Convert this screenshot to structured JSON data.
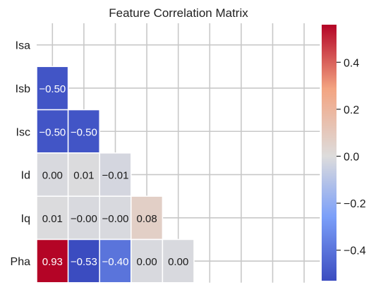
{
  "chart_data": {
    "type": "heatmap",
    "title": "Feature Correlation Matrix",
    "labels": [
      "Isa",
      "Isb",
      "Isc",
      "Id",
      "Iq",
      "Pha"
    ],
    "lower_triangle": [
      [],
      [
        -0.5
      ],
      [
        -0.5,
        -0.5
      ],
      [
        0.0,
        0.01,
        -0.01
      ],
      [
        0.01,
        -0.0,
        -0.0,
        0.08
      ],
      [
        0.93,
        -0.53,
        -0.4,
        0.0,
        0.0
      ]
    ],
    "display_text": [
      [],
      [
        "−0.50"
      ],
      [
        "−0.50",
        "−0.50"
      ],
      [
        "0.00",
        "0.01",
        "−0.01"
      ],
      [
        "0.01",
        "−0.00",
        "−0.00",
        "0.08"
      ],
      [
        "0.93",
        "−0.53",
        "−0.40",
        "0.00",
        "0.00"
      ]
    ],
    "grid_columns": 9,
    "grid": true,
    "colormap": "coolwarm",
    "vmin": -0.53,
    "vmax": 0.56,
    "colorbar_ticks": [
      0.4,
      0.2,
      0.0,
      -0.2,
      -0.4
    ],
    "colorbar_tick_labels": [
      "0.4",
      "0.2",
      "0.0",
      "−0.2",
      "−0.4"
    ],
    "legend_position": "right"
  }
}
